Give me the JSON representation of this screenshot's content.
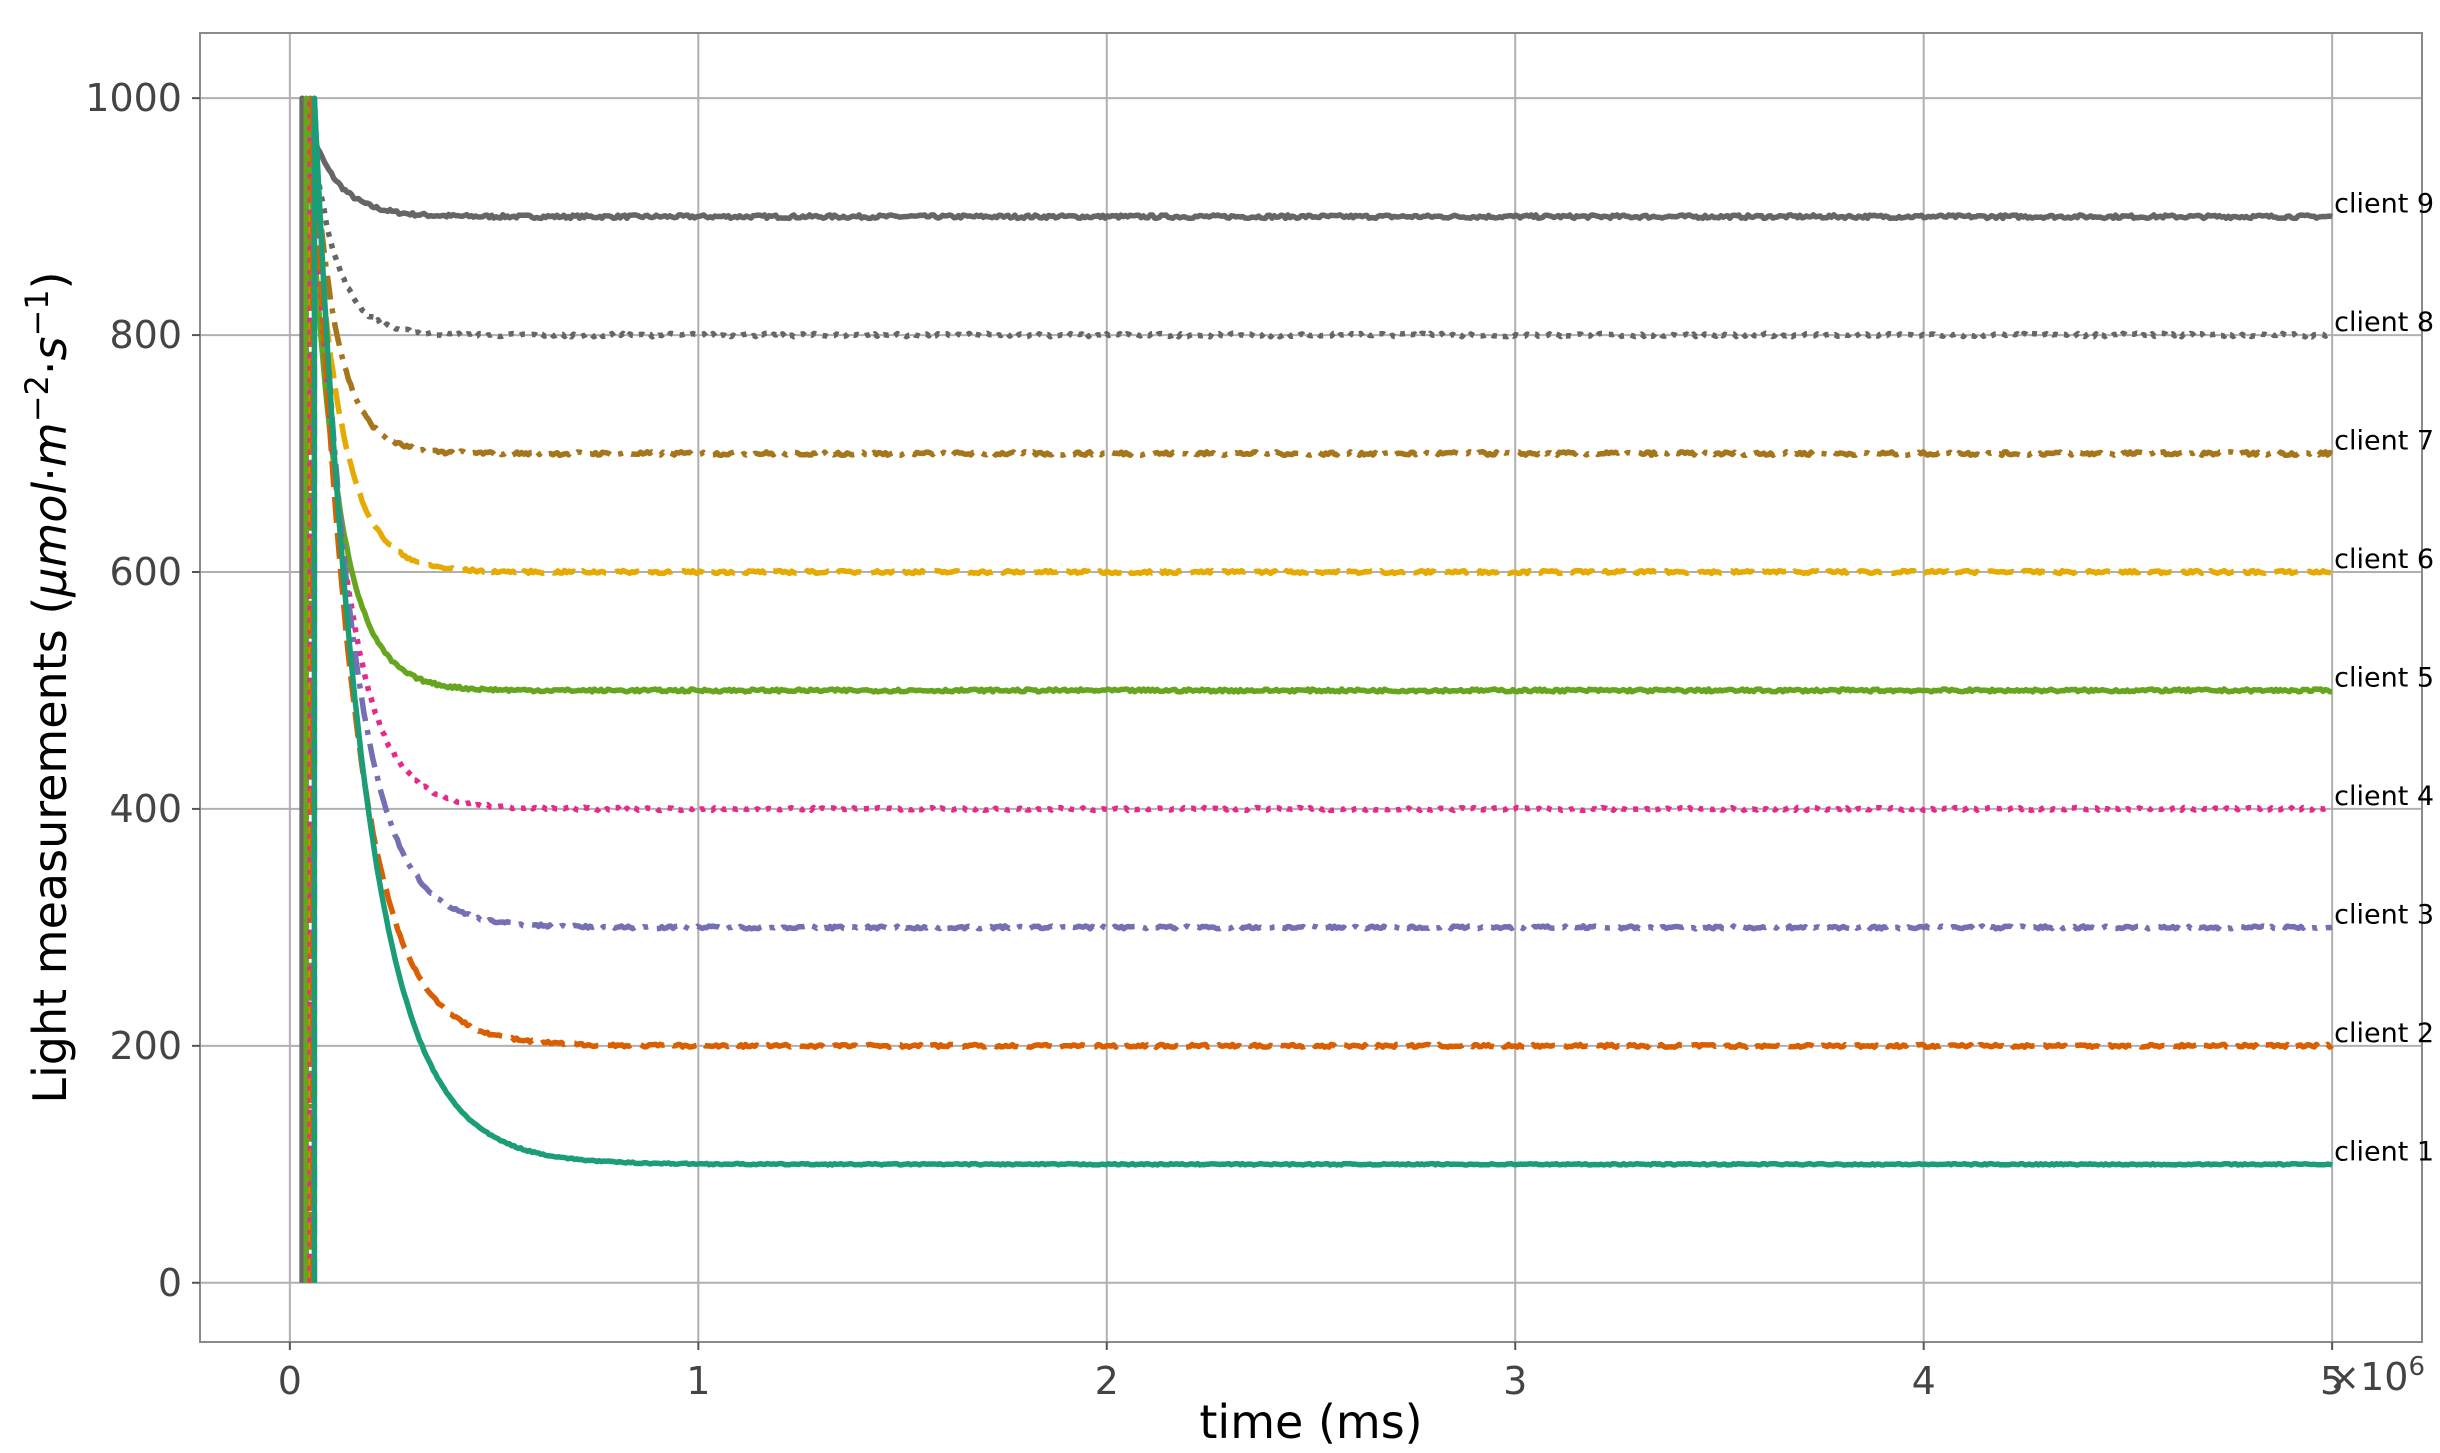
{
  "chart_data": {
    "type": "line",
    "xlabel": "time (ms)",
    "ylabel": "Light measurements (μmol·m⁻²·s⁻¹)",
    "ylabel_parts": {
      "text": "Light measurements (",
      "mu": "μ",
      "mol": "mol",
      "dot1": "·",
      "m": "m",
      "m_exp": "−2",
      "dot2": "·",
      "s": "s",
      "s_exp": "−1",
      "close": ")"
    },
    "x_scale_label": "×10⁶",
    "x_scale_parts": {
      "base": "×10",
      "exp": "6"
    },
    "xlim": [
      -0.22,
      5.22
    ],
    "ylim": [
      -50,
      1055
    ],
    "xticks": [
      0,
      1,
      2,
      3,
      4,
      5
    ],
    "xtick_labels": [
      "0",
      "1",
      "2",
      "3",
      "4",
      "5"
    ],
    "yticks": [
      0,
      200,
      400,
      600,
      800,
      1000
    ],
    "ytick_labels": [
      "0",
      "200",
      "400",
      "600",
      "800",
      "1000"
    ],
    "grid": true,
    "x_unit_multiplier": 1000000,
    "series": [
      {
        "name": "client 1",
        "color": "#1b9e77",
        "style": "solid",
        "start": 0.06,
        "peak": 1000,
        "steady": 100,
        "tau": 0.12,
        "noise": 1.2
      },
      {
        "name": "client 2",
        "color": "#d95f02",
        "style": "dashed",
        "start": 0.055,
        "peak": 1000,
        "steady": 200,
        "tau": 0.1,
        "noise": 2.5
      },
      {
        "name": "client 3",
        "color": "#7570b3",
        "style": "dashdot",
        "start": 0.06,
        "peak": 1000,
        "steady": 300,
        "tau": 0.09,
        "noise": 2.5
      },
      {
        "name": "client 4",
        "color": "#e7298a",
        "style": "dotted",
        "start": 0.05,
        "peak": 1000,
        "steady": 400,
        "tau": 0.08,
        "noise": 2.5
      },
      {
        "name": "client 5",
        "color": "#66a61e",
        "style": "solid",
        "start": 0.04,
        "peak": 1000,
        "steady": 500,
        "tau": 0.07,
        "noise": 2.5
      },
      {
        "name": "client 6",
        "color": "#e6ab02",
        "style": "dashed",
        "start": 0.045,
        "peak": 1000,
        "steady": 600,
        "tau": 0.07,
        "noise": 2.5
      },
      {
        "name": "client 7",
        "color": "#a6761d",
        "style": "dashdot",
        "start": 0.05,
        "peak": 1000,
        "steady": 700,
        "tau": 0.06,
        "noise": 3
      },
      {
        "name": "client 8",
        "color": "#666666",
        "style": "dotted",
        "start": 0.045,
        "peak": 1000,
        "steady": 800,
        "tau": 0.06,
        "noise": 3
      },
      {
        "name": "client 9",
        "color": "#666666",
        "style": "solid",
        "start": 0.03,
        "peak": 1000,
        "steady": 900,
        "tau": 0.07,
        "noise": 3
      }
    ]
  }
}
